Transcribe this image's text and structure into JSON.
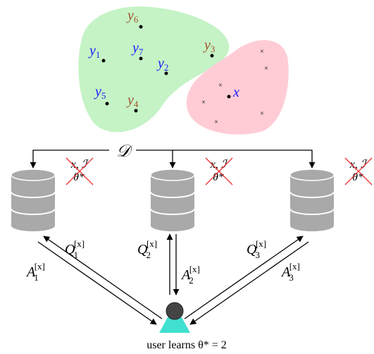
{
  "points": [
    {
      "label": "y",
      "index": "6"
    },
    {
      "label": "y",
      "index": "1"
    },
    {
      "label": "y",
      "index": "7"
    },
    {
      "label": "y",
      "index": "3"
    },
    {
      "label": "y",
      "index": "2"
    },
    {
      "label": "y",
      "index": "5"
    },
    {
      "label": "y",
      "index": "4"
    }
  ],
  "query_point": "x",
  "source": "𝒟",
  "hidden": [
    {
      "line1": "x, ℐ",
      "line2": "θ*"
    },
    {
      "line1": "x, ℐ",
      "line2": "θ*"
    },
    {
      "line1": "x, ℐ",
      "line2": "θ*"
    }
  ],
  "queries": [
    {
      "base": "Q",
      "sub": "1",
      "sup": "[x]"
    },
    {
      "base": "Q",
      "sub": "2",
      "sup": "[x]"
    },
    {
      "base": "Q",
      "sub": "3",
      "sup": "[x]"
    }
  ],
  "answers": [
    {
      "base": "A",
      "sub": "1",
      "sup": "[x]"
    },
    {
      "base": "A",
      "sub": "2",
      "sup": "[x]"
    },
    {
      "base": "A",
      "sub": "3",
      "sup": "[x]"
    }
  ],
  "caption": "user learns θ* = 2"
}
